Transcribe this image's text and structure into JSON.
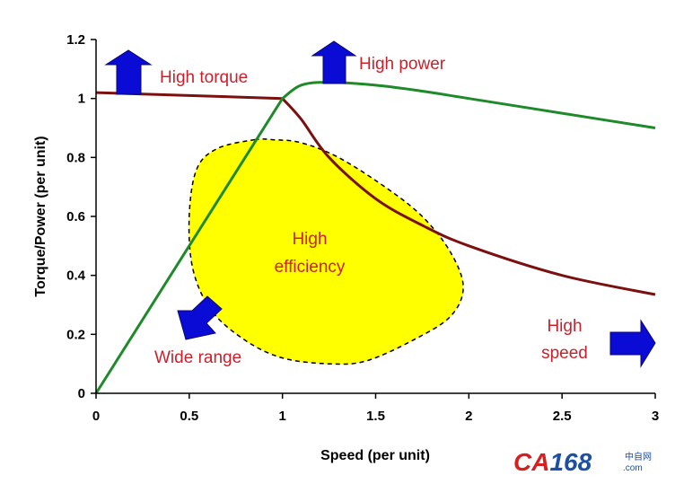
{
  "chart_data": {
    "type": "line",
    "title": "",
    "xlabel": "Speed (per unit)",
    "ylabel": "Torque/Power (per unit)",
    "xlim": [
      0,
      3
    ],
    "ylim": [
      0,
      1.2
    ],
    "x_ticks": [
      "0",
      "0.5",
      "1",
      "1.5",
      "2",
      "2.5",
      "3"
    ],
    "y_ticks": [
      "0",
      "0.2",
      "0.4",
      "0.6",
      "0.8",
      "1",
      "1.2"
    ],
    "grid": false,
    "series": [
      {
        "color": "#7b1010",
        "points": [
          [
            0,
            1.02
          ],
          [
            0.5,
            1.01
          ],
          [
            1.0,
            1.0
          ],
          [
            1.1,
            0.93
          ],
          [
            1.25,
            0.8
          ],
          [
            1.5,
            0.66
          ],
          [
            1.75,
            0.57
          ],
          [
            2.0,
            0.5
          ],
          [
            2.5,
            0.4
          ],
          [
            3.0,
            0.335
          ]
        ]
      },
      {
        "color": "#1e8a2a",
        "points": [
          [
            0,
            0
          ],
          [
            0.5,
            0.5
          ],
          [
            1.0,
            1.0
          ],
          [
            1.1,
            1.045
          ],
          [
            1.25,
            1.055
          ],
          [
            1.5,
            1.045
          ],
          [
            1.75,
            1.025
          ],
          [
            2.0,
            1.0
          ],
          [
            2.5,
            0.95
          ],
          [
            3.0,
            0.9
          ]
        ]
      }
    ],
    "efficiency_region": {
      "fill": "#ffff00",
      "outline": [
        [
          0.85,
          0.86
        ],
        [
          0.95,
          0.86
        ],
        [
          1.1,
          0.85
        ],
        [
          1.3,
          0.8
        ],
        [
          1.55,
          0.7
        ],
        [
          1.75,
          0.6
        ],
        [
          1.9,
          0.48
        ],
        [
          1.97,
          0.36
        ],
        [
          1.9,
          0.26
        ],
        [
          1.7,
          0.18
        ],
        [
          1.45,
          0.11
        ],
        [
          1.25,
          0.1
        ],
        [
          1.0,
          0.12
        ],
        [
          0.8,
          0.18
        ],
        [
          0.62,
          0.28
        ],
        [
          0.52,
          0.42
        ],
        [
          0.5,
          0.6
        ],
        [
          0.54,
          0.76
        ],
        [
          0.65,
          0.83
        ]
      ]
    },
    "annotations": {
      "high_torque": "High torque",
      "high_power": "High power",
      "high_efficiency_line1": "High",
      "high_efficiency_line2": "efficiency",
      "wide_range": "Wide range",
      "high_speed_line1": "High",
      "high_speed_line2": "speed"
    },
    "arrow_color": "#0b0bd6"
  },
  "watermark": {
    "brand_ca": "CA",
    "brand_num": "168",
    "chinese": "中自网",
    "dotcom": ".com",
    "color_red": "#d42020",
    "color_blue": "#1d4fa3"
  }
}
